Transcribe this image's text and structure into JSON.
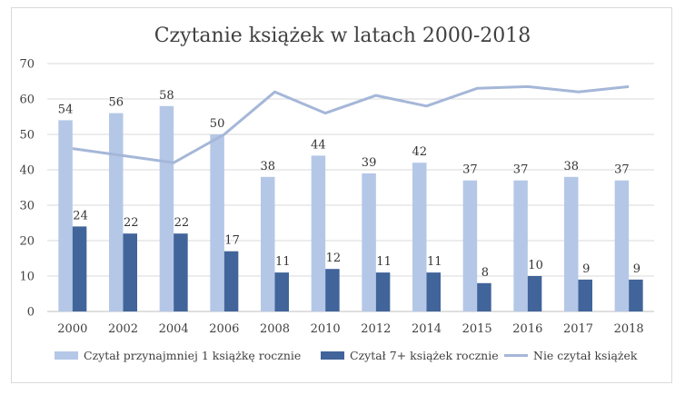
{
  "chart_data": {
    "type": "bar",
    "title": "Czytanie książek w latach 2000-2018",
    "xlabel": "",
    "ylabel": "",
    "ylim": [
      0,
      70
    ],
    "yticks": [
      0,
      10,
      20,
      30,
      40,
      50,
      60,
      70
    ],
    "grid": true,
    "legend_position": "bottom",
    "categories": [
      "2000",
      "2002",
      "2004",
      "2006",
      "2008",
      "2010",
      "2012",
      "2014",
      "2015",
      "2016",
      "2017",
      "2018"
    ],
    "series": [
      {
        "name": "Czytał przynajmniej 1 książkę rocznie",
        "type": "bar",
        "color": "#b4c7e7",
        "values": [
          54,
          56,
          58,
          50,
          38,
          44,
          39,
          42,
          37,
          37,
          38,
          37
        ],
        "labels": [
          "54",
          "56",
          "58",
          "50",
          "38",
          "44",
          "39",
          "42",
          "37",
          "37",
          "38",
          "37"
        ]
      },
      {
        "name": "Czytał 7+ książek rocznie",
        "type": "bar",
        "color": "#41649a",
        "values": [
          24,
          22,
          22,
          17,
          11,
          12,
          11,
          11,
          8,
          10,
          9,
          9
        ],
        "labels": [
          "24",
          "22",
          "22",
          "17",
          "11",
          "12",
          "11",
          "11",
          "8",
          "10",
          "9",
          "9"
        ]
      },
      {
        "name": "Nie czytał książek",
        "type": "line",
        "color": "#a5b7d8",
        "values": [
          46,
          44,
          42,
          50,
          62,
          56,
          61,
          58,
          63,
          63.5,
          62,
          63.5
        ]
      }
    ]
  }
}
